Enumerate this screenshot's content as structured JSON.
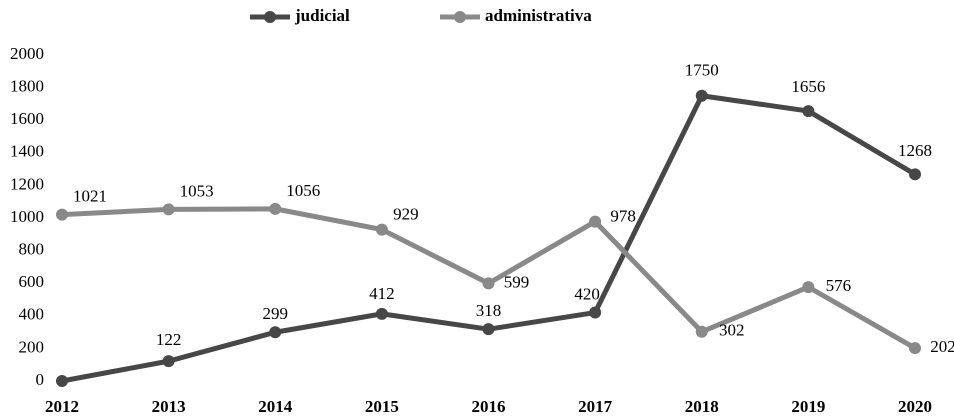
{
  "chart_data": {
    "type": "line",
    "categories": [
      "2012",
      "2013",
      "2014",
      "2015",
      "2016",
      "2017",
      "2018",
      "2019",
      "2020"
    ],
    "series": [
      {
        "name": "judicial",
        "color": "#474747",
        "values": [
          0,
          122,
          299,
          412,
          318,
          420,
          1750,
          1656,
          1268
        ],
        "value_labels": [
          null,
          "122",
          "299",
          "412",
          "318",
          "420",
          "1750",
          "1656",
          "1268"
        ]
      },
      {
        "name": "administrativa",
        "color": "#898989",
        "values": [
          1021,
          1053,
          1056,
          929,
          599,
          978,
          302,
          576,
          202
        ]
      }
    ],
    "ylim": [
      0,
      2000
    ],
    "yticks": [
      0,
      200,
      400,
      600,
      800,
      1000,
      1200,
      1400,
      1600,
      1800,
      2000
    ],
    "legend": "top",
    "grid": false
  }
}
